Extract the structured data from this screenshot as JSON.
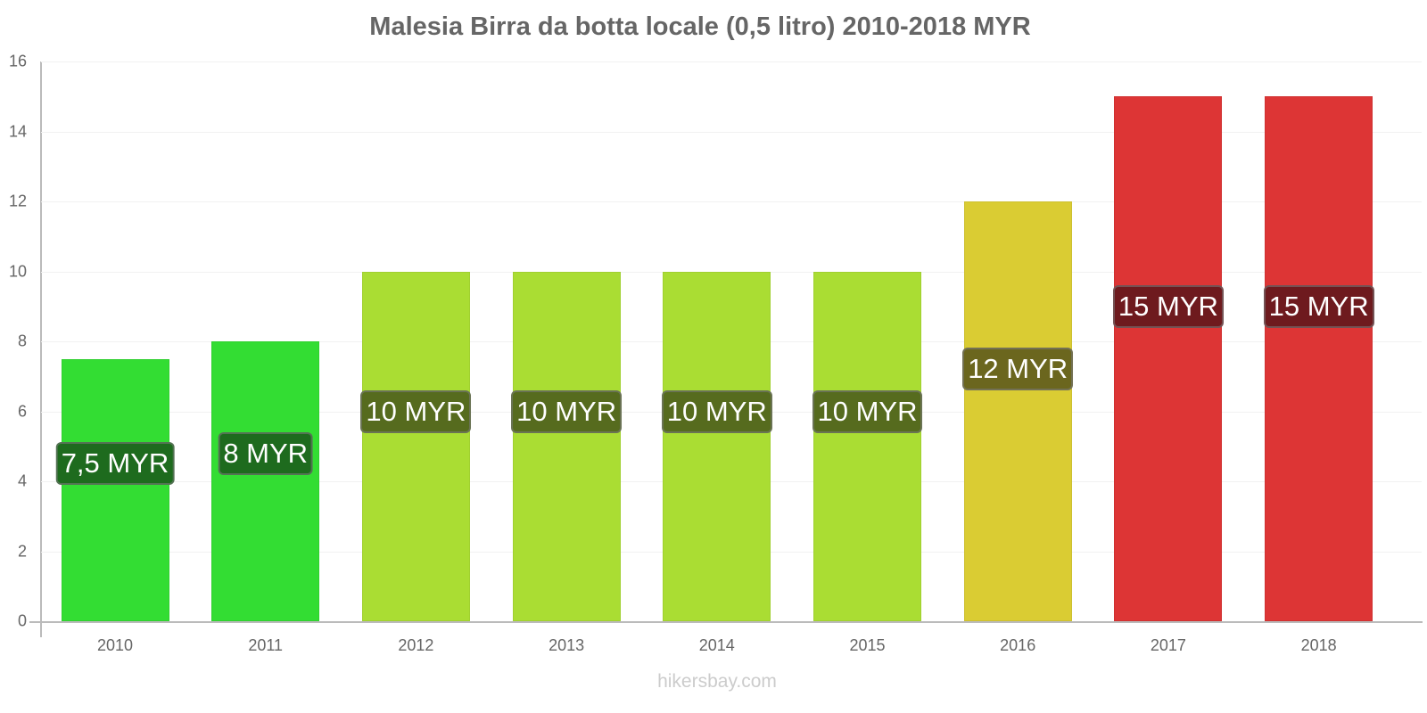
{
  "chart_data": {
    "type": "bar",
    "title": "Malesia Birra da botta locale (0,5 litro) 2010-2018 MYR",
    "xlabel": "",
    "ylabel": "",
    "ylim": [
      0,
      16
    ],
    "yticks": [
      "0",
      "2",
      "4",
      "6",
      "8",
      "10",
      "12",
      "14",
      "16"
    ],
    "categories": [
      "2010",
      "2011",
      "2012",
      "2013",
      "2014",
      "2015",
      "2016",
      "2017",
      "2018"
    ],
    "values": [
      7.5,
      8,
      10,
      10,
      10,
      10,
      12,
      15,
      15
    ],
    "data_labels": [
      "7,5 MYR",
      "8 MYR",
      "10 MYR",
      "10 MYR",
      "10 MYR",
      "10 MYR",
      "12 MYR",
      "15 MYR",
      "15 MYR"
    ],
    "bar_colors": [
      "#33dd33",
      "#33dd33",
      "#aadd33",
      "#aadd33",
      "#aadd33",
      "#aadd33",
      "#dacc33",
      "#dd3535",
      "#dd3535"
    ],
    "label_bg_colors": [
      "#1e6b1e",
      "#1e6b1e",
      "#566b1e",
      "#566b1e",
      "#566b1e",
      "#566b1e",
      "#6b661e",
      "#6e1a1e",
      "#6e1a1e"
    ],
    "grid": true,
    "legend": null
  },
  "footer": {
    "credit": "hikersbay.com"
  }
}
